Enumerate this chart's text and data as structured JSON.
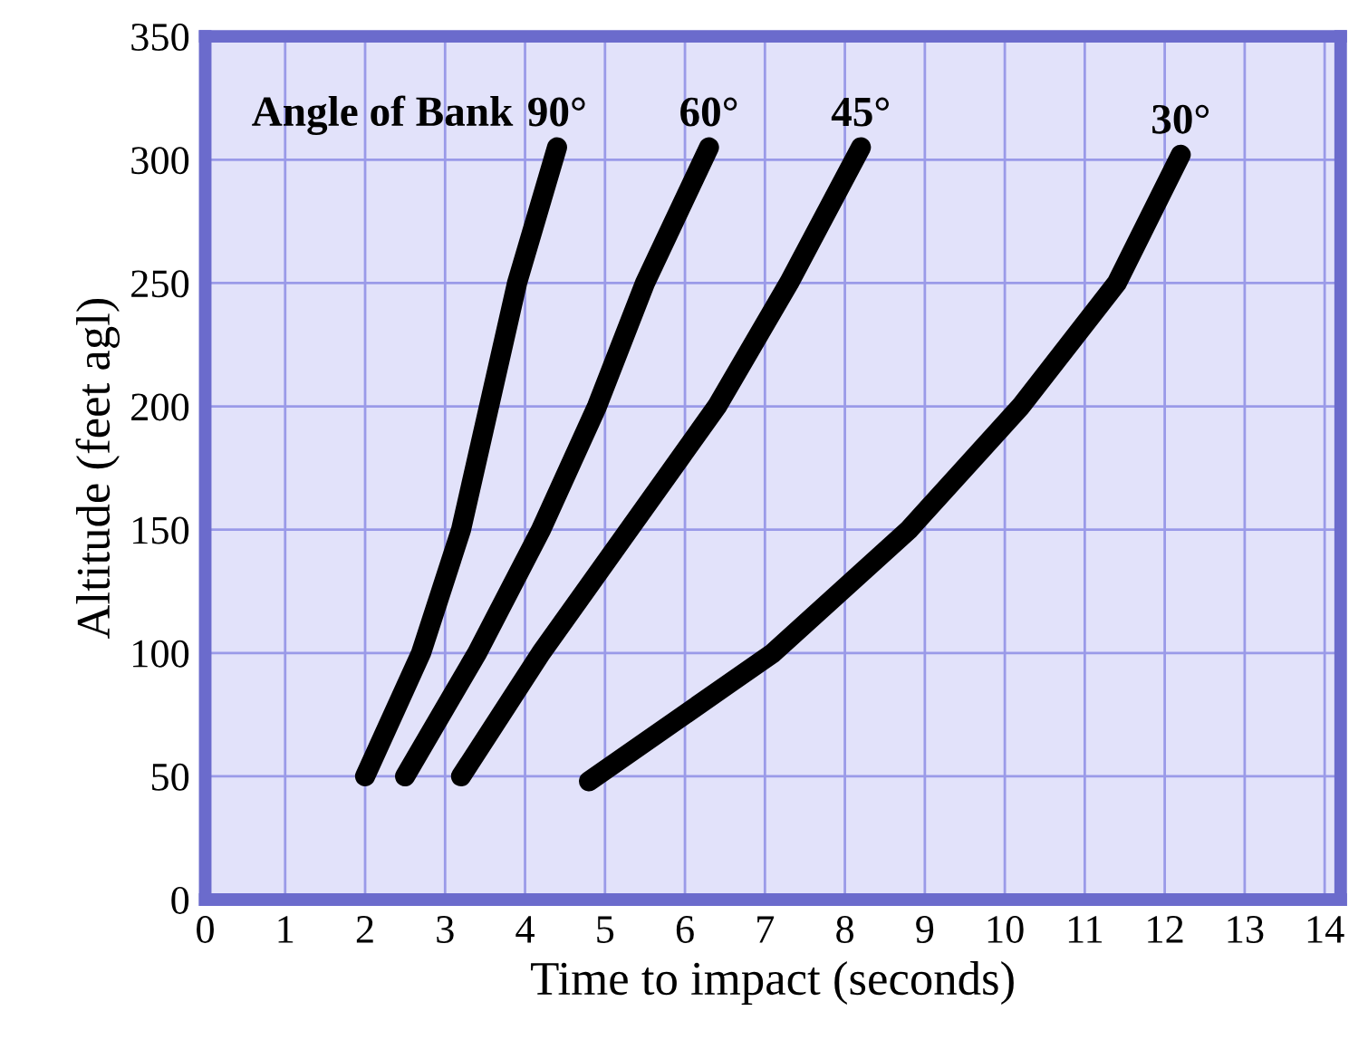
{
  "chart_data": {
    "type": "line",
    "xlabel": "Time to impact (seconds)",
    "ylabel": "Altitude (feet agl)",
    "annotations": [
      "Angle of Bank"
    ],
    "series": [
      {
        "name": "90°",
        "color": "#000000",
        "x": [
          2.0,
          2.7,
          3.2,
          3.9,
          4.4
        ],
        "values": [
          50,
          100,
          150,
          250,
          305
        ]
      },
      {
        "name": "60°",
        "color": "#000000",
        "x": [
          2.5,
          3.4,
          4.2,
          4.9,
          5.5,
          6.3
        ],
        "values": [
          50,
          100,
          150,
          200,
          250,
          305
        ]
      },
      {
        "name": "45°",
        "color": "#000000",
        "x": [
          3.2,
          4.2,
          5.3,
          6.4,
          7.3,
          8.2
        ],
        "values": [
          50,
          100,
          150,
          200,
          250,
          305
        ]
      },
      {
        "name": "30°",
        "color": "#000000",
        "x": [
          4.8,
          7.1,
          8.8,
          10.2,
          11.4,
          12.2
        ],
        "values": [
          48,
          100,
          150,
          200,
          250,
          302
        ]
      }
    ],
    "xlim": [
      0,
      14.2
    ],
    "ylim": [
      0,
      350
    ],
    "xticks": [
      0,
      1,
      2,
      3,
      4,
      5,
      6,
      7,
      8,
      9,
      10,
      11,
      12,
      13,
      14
    ],
    "yticks": [
      0,
      50,
      100,
      150,
      200,
      250,
      300,
      350
    ],
    "grid": true,
    "line_style": "solid",
    "legend": false
  }
}
